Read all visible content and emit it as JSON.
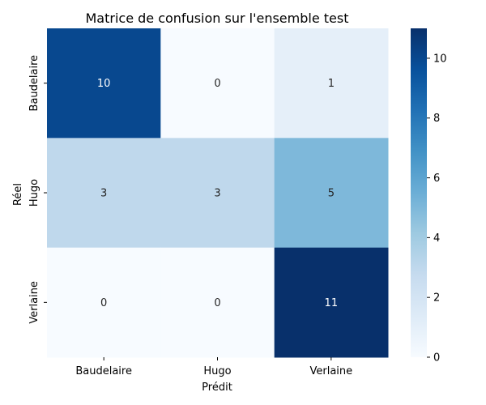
{
  "chart_data": {
    "type": "heatmap",
    "title": "Matrice de confusion sur l'ensemble test",
    "xlabel": "Prédit",
    "ylabel": "Réel",
    "x_categories": [
      "Baudelaire",
      "Hugo",
      "Verlaine"
    ],
    "y_categories": [
      "Baudelaire",
      "Hugo",
      "Verlaine"
    ],
    "values": [
      [
        10,
        0,
        1
      ],
      [
        3,
        3,
        5
      ],
      [
        0,
        0,
        11
      ]
    ],
    "annotations": true,
    "colormap": "Blues",
    "colorbar": {
      "vmin": 0,
      "vmax": 11,
      "ticks": [
        0,
        2,
        4,
        6,
        8,
        10
      ]
    },
    "grid": false
  }
}
